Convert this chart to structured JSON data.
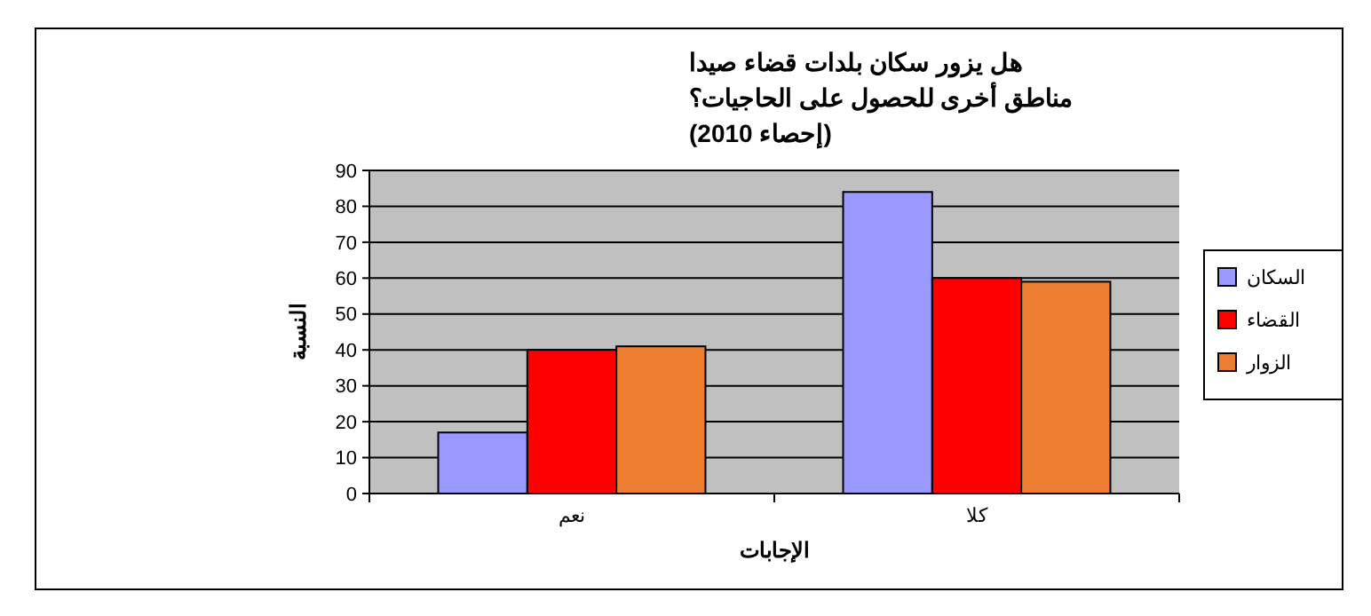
{
  "chart_data": {
    "type": "bar",
    "title": "هل يزور سكان بلدات قضاء صيدا\nمناطق أخرى للحصول على الحاجيات؟\n(إحصاء 2010)",
    "xlabel": "الإجابات",
    "ylabel": "النسبة",
    "categories": [
      "نعم",
      "كلا"
    ],
    "series": [
      {
        "name": "السكان",
        "color": "#9999ff",
        "values": [
          17,
          84
        ]
      },
      {
        "name": "القضاء",
        "color": "#ff0000",
        "values": [
          40,
          60
        ]
      },
      {
        "name": "الزوار",
        "color": "#ed7d31",
        "values": [
          41,
          59
        ]
      }
    ],
    "ylim": [
      0,
      90
    ],
    "yticks": [
      0,
      10,
      20,
      30,
      40,
      50,
      60,
      70,
      80,
      90
    ],
    "grid": "y",
    "legend": "right"
  }
}
